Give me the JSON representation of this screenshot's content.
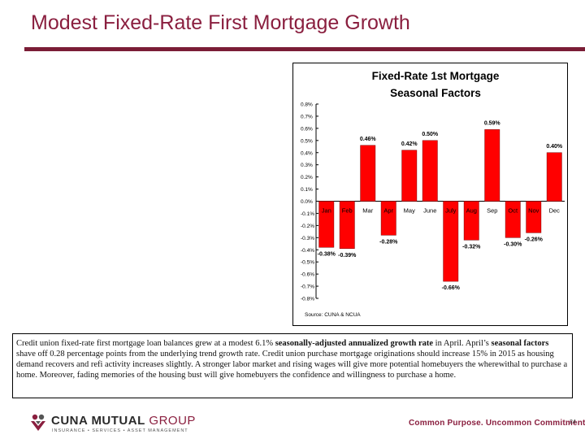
{
  "slide": {
    "title": "Modest Fixed-Rate First Mortgage Growth",
    "page_number": "24"
  },
  "caption": {
    "part1": "Credit union fixed-rate first mortgage loan balances grew at a modest 6.1% ",
    "bold1": "seasonally-adjusted annualized growth rate",
    "part2": " in April. April’s ",
    "bold2": "seasonal factors",
    "part3": " shave off 0.28 percentage points from the underlying trend growth rate. Credit union purchase mortgage originations should increase 15% in 2015 as housing demand recovers and refi activity increases slightly.  A stronger labor market and rising wages will give more potential homebuyers the wherewithal to purchase a home.  Moreover, fading memories of the housing bust will give homebuyers the confidence and willingness to purchase a home."
  },
  "footer": {
    "logo_name_a": "CUNA MUTUAL",
    "logo_name_b": " GROUP",
    "logo_tagline": "INSURANCE • SERVICES • ASSET MANAGEMENT",
    "slogan": "Common Purpose. Uncommon Commitment."
  },
  "colors": {
    "brand": "#8a1f3f",
    "bar": "#ff0000"
  },
  "chart_data": {
    "type": "bar",
    "title_line1": "Fixed-Rate 1st Mortgage",
    "title_line2": "Seasonal Factors",
    "categories": [
      "Jan",
      "Feb",
      "Mar",
      "Apr",
      "May",
      "June",
      "July",
      "Aug",
      "Sep",
      "Oct",
      "Nov",
      "Dec"
    ],
    "values": [
      -0.38,
      -0.39,
      0.46,
      -0.28,
      0.42,
      0.5,
      -0.66,
      -0.32,
      0.59,
      -0.3,
      -0.26,
      0.4
    ],
    "data_labels": [
      "-0.38%",
      "-0.39%",
      "0.46%",
      "-0.28%",
      "0.42%",
      "0.50%",
      "-0.66%",
      "-0.32%",
      "0.59%",
      "-0.30%",
      "-0.26%",
      "0.40%"
    ],
    "yticks": [
      0.8,
      0.7,
      0.6,
      0.5,
      0.4,
      0.3,
      0.2,
      0.1,
      0.0,
      -0.1,
      -0.2,
      -0.3,
      -0.4,
      -0.5,
      -0.6,
      -0.7,
      -0.8
    ],
    "ytick_labels": [
      "0.8%",
      "0.7%",
      "0.6%",
      "0.5%",
      "0.4%",
      "0.3%",
      "0.2%",
      "0.1%",
      "0.0%",
      "-0.1%",
      "-0.2%",
      "-0.3%",
      "-0.4%",
      "-0.5%",
      "-0.6%",
      "-0.7%",
      "-0.8%"
    ],
    "ylim": [
      -0.8,
      0.8
    ],
    "grid": false,
    "legend": "none",
    "source": "Source: CUNA & NCUA"
  }
}
